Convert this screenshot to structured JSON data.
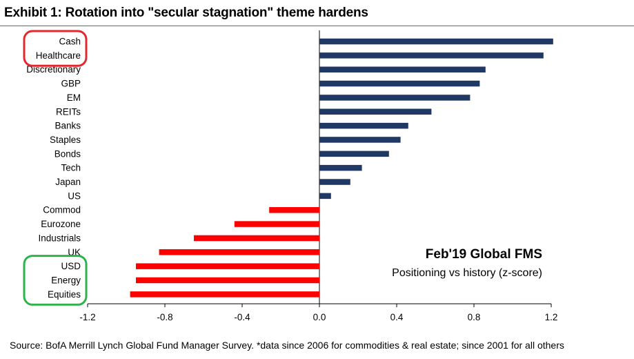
{
  "header": {
    "title": "Exhibit 1: Rotation into \"secular stagnation\" theme hardens"
  },
  "footer": {
    "source": "Source: BofA Merrill Lynch Global Fund Manager Survey. *data since 2006 for commodities & real estate; since 2001 for all others"
  },
  "colors": {
    "positive": "#1f3864",
    "negative": "#ff0000",
    "highlight_top": "#e0282e",
    "highlight_bottom": "#2db34a"
  },
  "chart_data": {
    "type": "bar",
    "orientation": "horizontal",
    "title": "Feb'19 Global FMS",
    "subtitle": "Positioning vs history (z-score)",
    "categories": [
      "Cash",
      "Healthcare",
      "Discretionary",
      "GBP",
      "EM",
      "REITs",
      "Banks",
      "Staples",
      "Bonds",
      "Tech",
      "Japan",
      "US",
      "Commod",
      "Eurozone",
      "Industrials",
      "UK",
      "USD",
      "Energy",
      "Equities"
    ],
    "values": [
      1.21,
      1.16,
      0.86,
      0.83,
      0.78,
      0.58,
      0.46,
      0.42,
      0.36,
      0.22,
      0.16,
      0.06,
      -0.26,
      -0.44,
      -0.65,
      -0.83,
      -0.95,
      -0.95,
      -0.98
    ],
    "xlim": [
      -1.2,
      1.2
    ],
    "xticks": [
      "-1.2",
      "-0.8",
      "-0.4",
      "0.0",
      "0.4",
      "0.8",
      "1.2"
    ],
    "xtick_values": [
      -1.2,
      -0.8,
      -0.4,
      0.0,
      0.4,
      0.8,
      1.2
    ],
    "highlight_groups": [
      {
        "categories": [
          "Cash",
          "Healthcare"
        ],
        "color": "red"
      },
      {
        "categories": [
          "USD",
          "Energy",
          "Equities"
        ],
        "color": "green"
      }
    ],
    "grid": false,
    "legend": "none"
  }
}
